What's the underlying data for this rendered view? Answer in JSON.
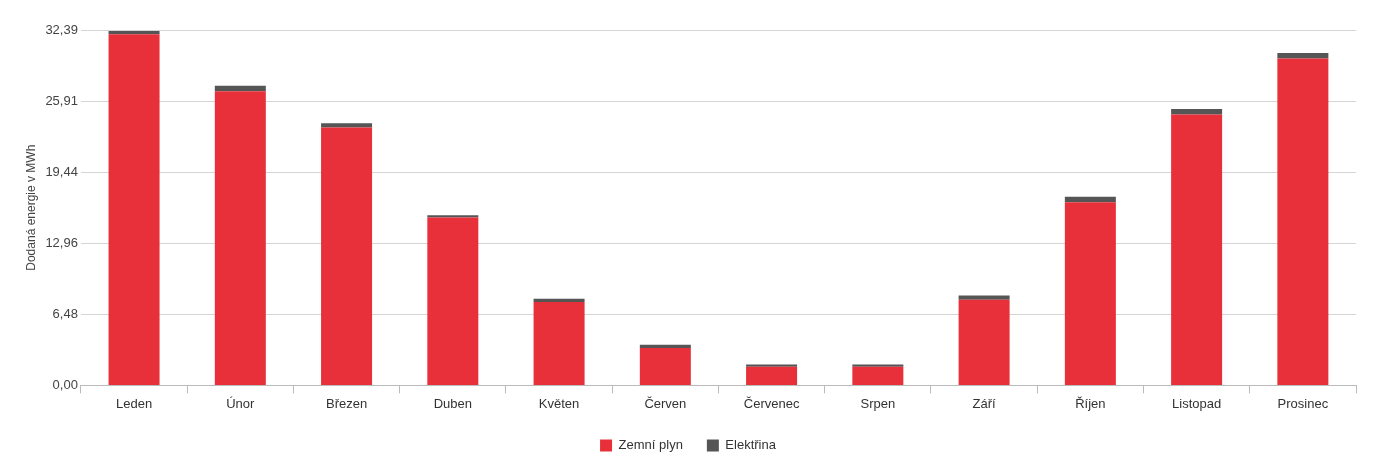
{
  "chart_data": {
    "type": "bar",
    "stacked": true,
    "ylabel": "Dodaná energie v MWh",
    "categories": [
      "Leden",
      "Únor",
      "Březen",
      "Duben",
      "Květen",
      "Červen",
      "Červenec",
      "Srpen",
      "Září",
      "Říjen",
      "Listopad",
      "Prosinec"
    ],
    "series": [
      {
        "name": "Zemní plyn",
        "color": "#e8303a",
        "values": [
          32.0,
          26.8,
          23.5,
          15.3,
          7.6,
          3.4,
          1.7,
          1.7,
          7.8,
          16.7,
          24.7,
          29.8
        ]
      },
      {
        "name": "Elektřina",
        "color": "#555555",
        "values": [
          0.3,
          0.5,
          0.4,
          0.2,
          0.3,
          0.3,
          0.2,
          0.2,
          0.4,
          0.5,
          0.5,
          0.5
        ]
      }
    ],
    "ylim": [
      0,
      32.39
    ],
    "yticks": [
      {
        "value": 0,
        "label": "0,00"
      },
      {
        "value": 6.48,
        "label": "6,48"
      },
      {
        "value": 12.96,
        "label": "12,96"
      },
      {
        "value": 19.44,
        "label": "19,44"
      },
      {
        "value": 25.91,
        "label": "25,91"
      },
      {
        "value": 32.39,
        "label": "32,39"
      }
    ],
    "grid": "y",
    "legend": "bottom"
  }
}
